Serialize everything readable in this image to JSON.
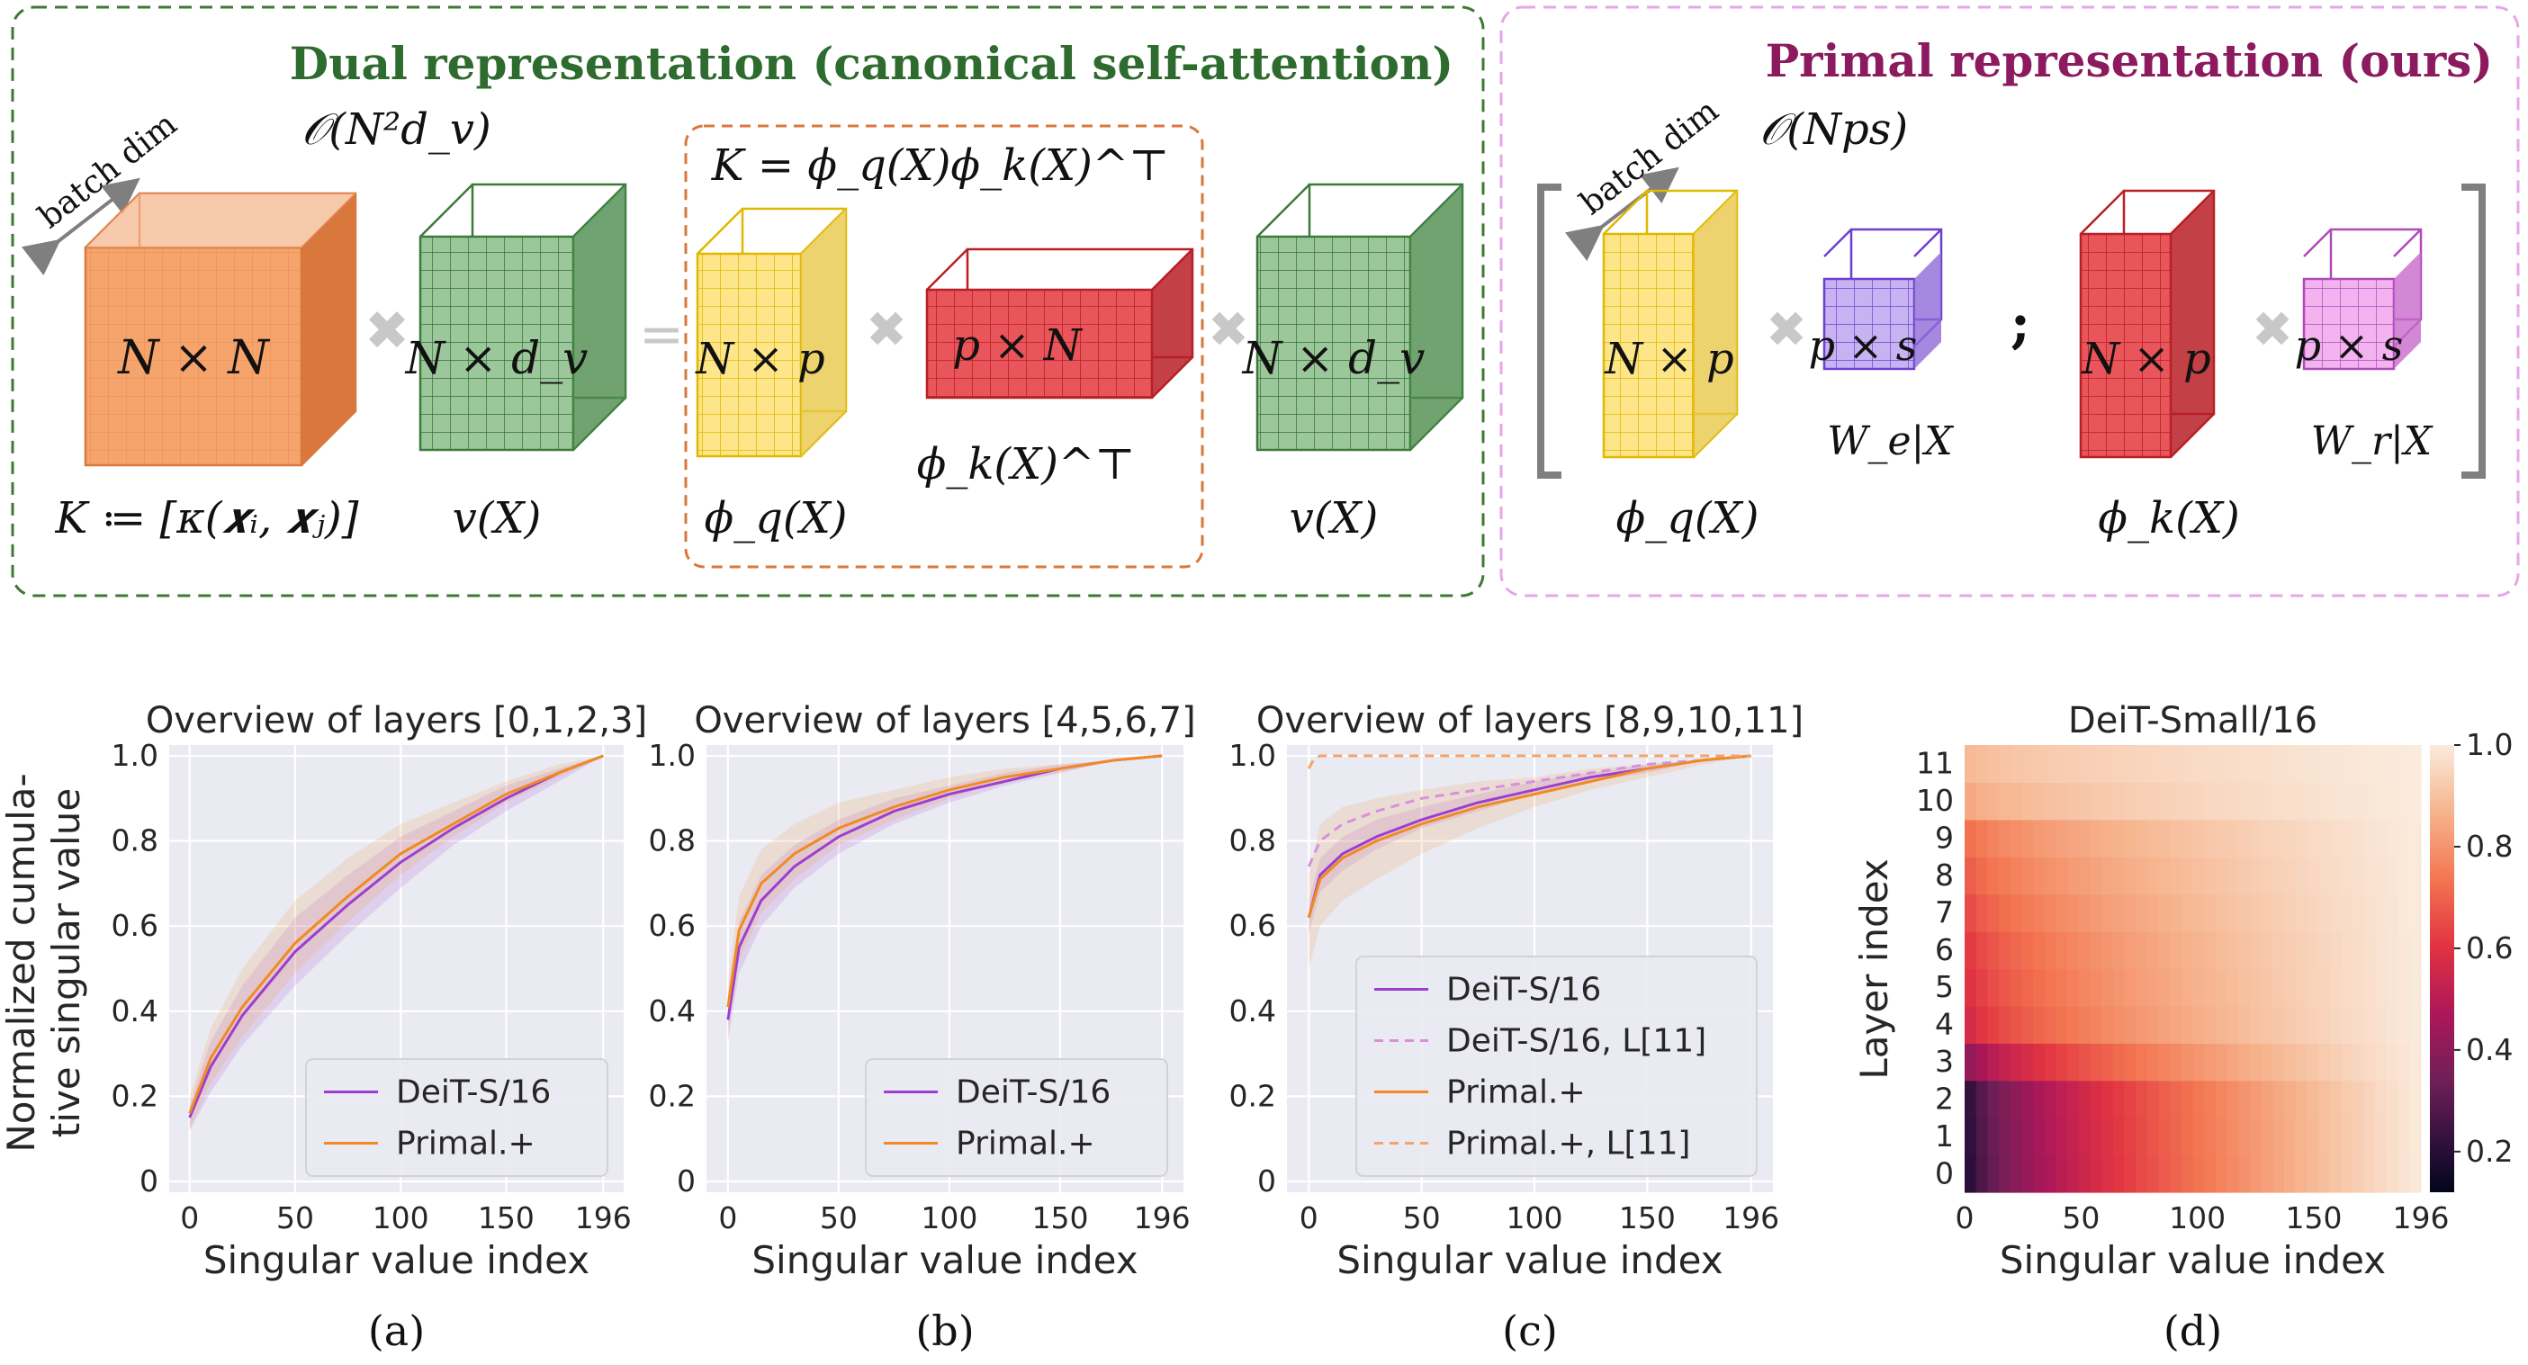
{
  "diagram": {
    "dual": {
      "title": "Dual representation (canonical self-attention)",
      "title_color": "#2e6b2e",
      "border_color": "#3d7a32",
      "complexity": "𝒪(N²d_v)",
      "batch_label": "batch dim",
      "kernel_def": "K ≔ [κ(𝒙ᵢ, 𝒙ⱼ)]",
      "kernel_formula": "K = ϕ_q(X)ϕ_k(X)^⊤",
      "blocks": [
        {
          "label": "N × N",
          "caption": "K ≔ [κ(𝒙ᵢ, 𝒙ⱼ)]"
        },
        {
          "label": "N × d_v",
          "caption": "v(X)"
        },
        {
          "label": "N × p",
          "caption": "ϕ_q(X)"
        },
        {
          "label": "p × N",
          "caption": "ϕ_k(X)^⊤"
        },
        {
          "label": "N × d_v",
          "caption": "v(X)"
        }
      ],
      "equals": "="
    },
    "primal": {
      "title": "Primal representation (ours)",
      "title_color": "#8b1a5e",
      "border_color": "#e7a6e7",
      "complexity": "𝒪(Nps)",
      "batch_label": "batch dim",
      "separator": ";",
      "blocks": [
        {
          "label": "N × p",
          "caption": "ϕ_q(X)"
        },
        {
          "label": "p × s",
          "caption": "W_e|X"
        },
        {
          "label": "N × p",
          "caption": "ϕ_k(X)"
        },
        {
          "label": "p × s",
          "caption": "W_r|X"
        }
      ]
    }
  },
  "chart_data": [
    {
      "type": "line",
      "title": "Overview of layers [0,1,2,3]",
      "xlabel": "Singular value index",
      "ylabel": "Normalized cumula-\ntive singular value",
      "xlim": [
        0,
        196
      ],
      "ylim": [
        0,
        1.0
      ],
      "xticks": [
        "0",
        "50",
        "100",
        "150",
        "196"
      ],
      "yticks": [
        "0",
        "0.2",
        "0.4",
        "0.6",
        "0.8",
        "1.0"
      ],
      "legend_position": "lower-right",
      "caption": "(a)",
      "series": [
        {
          "name": "DeiT-S/16",
          "color": "#9b3fcf",
          "style": "solid",
          "x": [
            0,
            10,
            25,
            50,
            75,
            100,
            125,
            150,
            175,
            196
          ],
          "y": [
            0.15,
            0.27,
            0.39,
            0.54,
            0.65,
            0.75,
            0.83,
            0.9,
            0.96,
            1.0
          ],
          "band": {
            "lower": [
              0.12,
              0.21,
              0.32,
              0.46,
              0.58,
              0.69,
              0.79,
              0.87,
              0.94,
              1.0
            ],
            "upper": [
              0.18,
              0.33,
              0.46,
              0.62,
              0.72,
              0.81,
              0.87,
              0.93,
              0.97,
              1.0
            ]
          }
        },
        {
          "name": "Primal.+",
          "color": "#f28a22",
          "style": "solid",
          "x": [
            0,
            10,
            25,
            50,
            75,
            100,
            125,
            150,
            175,
            196
          ],
          "y": [
            0.16,
            0.29,
            0.41,
            0.56,
            0.67,
            0.77,
            0.84,
            0.91,
            0.96,
            1.0
          ],
          "band": {
            "lower": [
              0.12,
              0.23,
              0.34,
              0.49,
              0.61,
              0.72,
              0.81,
              0.89,
              0.95,
              1.0
            ],
            "upper": [
              0.2,
              0.36,
              0.5,
              0.66,
              0.76,
              0.84,
              0.89,
              0.94,
              0.98,
              1.0
            ]
          }
        }
      ]
    },
    {
      "type": "line",
      "title": "Overview of layers [4,5,6,7]",
      "xlabel": "Singular value index",
      "xlim": [
        0,
        196
      ],
      "ylim": [
        0,
        1.0
      ],
      "xticks": [
        "0",
        "50",
        "100",
        "150",
        "196"
      ],
      "yticks": [
        "0",
        "0.2",
        "0.4",
        "0.6",
        "0.8",
        "1.0"
      ],
      "legend_position": "lower-right",
      "caption": "(b)",
      "series": [
        {
          "name": "DeiT-S/16",
          "color": "#9b3fcf",
          "style": "solid",
          "x": [
            0,
            5,
            15,
            30,
            50,
            75,
            100,
            125,
            150,
            175,
            196
          ],
          "y": [
            0.38,
            0.55,
            0.66,
            0.74,
            0.81,
            0.87,
            0.91,
            0.94,
            0.97,
            0.99,
            1.0
          ],
          "band": {
            "lower": [
              0.33,
              0.49,
              0.6,
              0.69,
              0.77,
              0.84,
              0.89,
              0.93,
              0.96,
              0.99,
              1.0
            ],
            "upper": [
              0.44,
              0.61,
              0.72,
              0.79,
              0.85,
              0.9,
              0.93,
              0.96,
              0.98,
              0.99,
              1.0
            ]
          }
        },
        {
          "name": "Primal.+",
          "color": "#f28a22",
          "style": "solid",
          "x": [
            0,
            5,
            15,
            30,
            50,
            75,
            100,
            125,
            150,
            175,
            196
          ],
          "y": [
            0.41,
            0.59,
            0.7,
            0.77,
            0.83,
            0.88,
            0.92,
            0.95,
            0.97,
            0.99,
            1.0
          ],
          "band": {
            "lower": [
              0.35,
              0.52,
              0.63,
              0.71,
              0.79,
              0.85,
              0.9,
              0.94,
              0.96,
              0.99,
              1.0
            ],
            "upper": [
              0.47,
              0.67,
              0.78,
              0.84,
              0.89,
              0.92,
              0.95,
              0.97,
              0.98,
              0.99,
              1.0
            ]
          }
        }
      ]
    },
    {
      "type": "line",
      "title": "Overview of layers [8,9,10,11]",
      "xlabel": "Singular value index",
      "xlim": [
        0,
        196
      ],
      "ylim": [
        0,
        1.0
      ],
      "xticks": [
        "0",
        "50",
        "100",
        "150",
        "196"
      ],
      "yticks": [
        "0",
        "0.2",
        "0.4",
        "0.6",
        "0.8",
        "1.0"
      ],
      "legend_position": "lower-right",
      "caption": "(c)",
      "series": [
        {
          "name": "DeiT-S/16",
          "color": "#9b3fcf",
          "style": "solid",
          "x": [
            0,
            5,
            15,
            30,
            50,
            75,
            100,
            125,
            150,
            175,
            196
          ],
          "y": [
            0.62,
            0.72,
            0.77,
            0.81,
            0.85,
            0.89,
            0.92,
            0.95,
            0.97,
            0.99,
            1.0
          ],
          "band": {
            "lower": [
              0.58,
              0.68,
              0.73,
              0.78,
              0.83,
              0.87,
              0.91,
              0.94,
              0.96,
              0.99,
              1.0
            ],
            "upper": [
              0.66,
              0.76,
              0.81,
              0.85,
              0.88,
              0.91,
              0.94,
              0.96,
              0.98,
              0.99,
              1.0
            ]
          }
        },
        {
          "name": "DeiT-S/16, L[11]",
          "color": "#d890dd",
          "style": "dashed",
          "x": [
            0,
            5,
            15,
            30,
            50,
            75,
            100,
            125,
            150,
            175,
            196
          ],
          "y": [
            0.74,
            0.8,
            0.84,
            0.87,
            0.9,
            0.92,
            0.94,
            0.96,
            0.98,
            0.99,
            1.0
          ]
        },
        {
          "name": "Primal.+",
          "color": "#f28a22",
          "style": "solid",
          "x": [
            0,
            5,
            15,
            30,
            50,
            75,
            100,
            125,
            150,
            175,
            196
          ],
          "y": [
            0.62,
            0.71,
            0.76,
            0.8,
            0.84,
            0.88,
            0.91,
            0.94,
            0.97,
            0.99,
            1.0
          ],
          "band": {
            "lower": [
              0.5,
              0.6,
              0.66,
              0.71,
              0.77,
              0.83,
              0.88,
              0.92,
              0.95,
              0.98,
              1.0
            ],
            "upper": [
              0.72,
              0.84,
              0.88,
              0.9,
              0.92,
              0.94,
              0.95,
              0.97,
              0.98,
              0.99,
              1.0
            ]
          }
        },
        {
          "name": "Primal.+, L[11]",
          "color": "#f5a36a",
          "style": "dashed",
          "x": [
            0,
            2,
            5,
            10,
            50,
            100,
            150,
            196
          ],
          "y": [
            0.97,
            0.99,
            1.0,
            1.0,
            1.0,
            1.0,
            1.0,
            1.0
          ]
        }
      ]
    },
    {
      "type": "heatmap",
      "title": "DeiT-Small/16",
      "xlabel": "Singular value index",
      "ylabel": "Layer index",
      "xticks": [
        "0",
        "50",
        "100",
        "150",
        "196"
      ],
      "yticks": [
        "0",
        "1",
        "2",
        "3",
        "4",
        "5",
        "6",
        "7",
        "8",
        "9",
        "10",
        "11"
      ],
      "colorbar_ticks": [
        "0.2",
        "0.4",
        "0.6",
        "0.8",
        "1.0"
      ],
      "colorbar_range": [
        0.12,
        1.0
      ],
      "caption": "(d)",
      "start_values": [
        0.13,
        0.14,
        0.15,
        0.36,
        0.53,
        0.56,
        0.58,
        0.62,
        0.66,
        0.7,
        0.83,
        0.87
      ]
    }
  ]
}
